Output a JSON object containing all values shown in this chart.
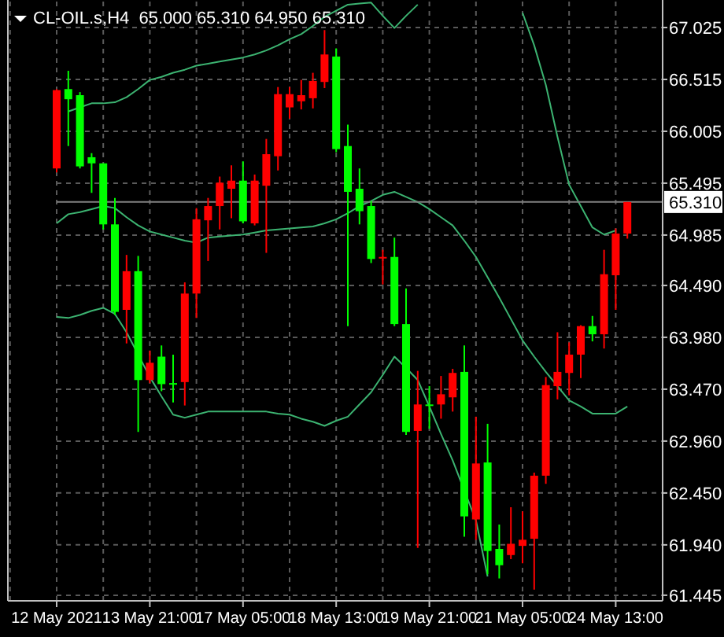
{
  "chart_data": {
    "type": "candlestick",
    "title": "CL-OIL.s,H4  65.000 65.310 64.950 65.310",
    "categories": [
      "12 May 2021",
      null,
      null,
      null,
      null,
      null,
      null,
      null,
      "13 May 21:00",
      null,
      null,
      null,
      null,
      null,
      null,
      null,
      "17 May 05:00",
      null,
      null,
      null,
      null,
      null,
      null,
      null,
      "18 May 13:00",
      null,
      null,
      null,
      null,
      null,
      null,
      null,
      "19 May 21:00",
      null,
      null,
      null,
      null,
      null,
      null,
      null,
      "21 May 05:00",
      null,
      null,
      null,
      null,
      null,
      null,
      null,
      "24 May 13:00",
      null
    ],
    "ohlc": [
      [
        65.64,
        66.42,
        65.6,
        66.41
      ],
      [
        66.42,
        66.6,
        65.86,
        66.32
      ],
      [
        66.36,
        66.39,
        65.64,
        65.66
      ],
      [
        65.75,
        65.79,
        65.4,
        65.69
      ],
      [
        65.69,
        65.69,
        65.04,
        65.09
      ],
      [
        65.09,
        65.35,
        64.2,
        64.23
      ],
      [
        64.25,
        64.79,
        63.92,
        64.63
      ],
      [
        64.63,
        64.78,
        63.05,
        63.56
      ],
      [
        63.56,
        63.85,
        63.53,
        63.73
      ],
      [
        63.79,
        63.9,
        63.45,
        63.52
      ],
      [
        63.53,
        63.81,
        63.34,
        63.52
      ],
      [
        63.54,
        64.52,
        63.31,
        64.41
      ],
      [
        64.41,
        65.25,
        64.17,
        65.14
      ],
      [
        65.13,
        65.35,
        64.73,
        65.27
      ],
      [
        65.27,
        65.56,
        65.04,
        65.5
      ],
      [
        65.44,
        65.67,
        65.15,
        65.52
      ],
      [
        65.52,
        65.71,
        65.1,
        65.12
      ],
      [
        65.1,
        65.58,
        65.08,
        65.52
      ],
      [
        65.47,
        65.93,
        64.81,
        65.78
      ],
      [
        65.76,
        66.44,
        65.62,
        66.37
      ],
      [
        66.24,
        66.44,
        66.13,
        66.37
      ],
      [
        66.3,
        66.51,
        66.22,
        66.36
      ],
      [
        66.33,
        66.58,
        66.23,
        66.5
      ],
      [
        66.49,
        67.0,
        66.43,
        66.76
      ],
      [
        66.74,
        66.82,
        65.8,
        65.83
      ],
      [
        65.86,
        66.07,
        64.09,
        65.41
      ],
      [
        65.44,
        65.64,
        65.09,
        65.22
      ],
      [
        65.27,
        65.32,
        64.71,
        64.75
      ],
      [
        64.76,
        64.84,
        64.5,
        64.77
      ],
      [
        64.77,
        64.96,
        64.09,
        64.11
      ],
      [
        64.11,
        64.46,
        63.02,
        63.05
      ],
      [
        63.06,
        63.65,
        61.91,
        63.32
      ],
      [
        63.32,
        63.5,
        63.08,
        63.31
      ],
      [
        63.32,
        63.6,
        63.18,
        63.42
      ],
      [
        63.39,
        63.67,
        63.25,
        63.63
      ],
      [
        63.64,
        63.9,
        62.02,
        62.22
      ],
      [
        62.19,
        63.2,
        61.99,
        62.74
      ],
      [
        62.75,
        63.13,
        61.65,
        61.88
      ],
      [
        61.9,
        62.14,
        61.61,
        61.74
      ],
      [
        61.84,
        62.31,
        61.8,
        61.95
      ],
      [
        61.93,
        62.27,
        61.76,
        61.99
      ],
      [
        62.0,
        62.65,
        61.5,
        62.62
      ],
      [
        62.62,
        63.59,
        62.54,
        63.51
      ],
      [
        63.5,
        64.03,
        63.37,
        63.64
      ],
      [
        63.63,
        63.93,
        63.41,
        63.81
      ],
      [
        63.81,
        64.1,
        63.58,
        64.09
      ],
      [
        64.09,
        64.19,
        63.94,
        64.01
      ],
      [
        64.01,
        64.84,
        63.87,
        64.6
      ],
      [
        64.59,
        65.05,
        64.25,
        65.0
      ],
      [
        65.0,
        65.31,
        64.95,
        65.31
      ]
    ],
    "colors": [
      "#ff0000",
      "#00ff00",
      "#00ff00",
      "#00ff00",
      "#00ff00",
      "#00ff00",
      "#ff0000",
      "#00ff00",
      "#ff0000",
      "#00ff00",
      "#00ff00",
      "#ff0000",
      "#ff0000",
      "#ff0000",
      "#ff0000",
      "#ff0000",
      "#00ff00",
      "#ff0000",
      "#ff0000",
      "#ff0000",
      "#ff0000",
      "#ff0000",
      "#ff0000",
      "#ff0000",
      "#00ff00",
      "#00ff00",
      "#00ff00",
      "#00ff00",
      "#ff0000",
      "#00ff00",
      "#00ff00",
      "#ff0000",
      "#00ff00",
      "#ff0000",
      "#ff0000",
      "#00ff00",
      "#ff0000",
      "#00ff00",
      "#00ff00",
      "#ff0000",
      "#ff0000",
      "#ff0000",
      "#ff0000",
      "#ff0000",
      "#ff0000",
      "#ff0000",
      "#00ff00",
      "#ff0000",
      "#ff0000",
      "#ff0000"
    ],
    "series": [
      {
        "type": "line",
        "color": "#3cb371",
        "values": [
          null,
          66.2,
          66.24,
          66.28,
          66.28,
          66.29,
          66.34,
          66.42,
          66.51,
          66.54,
          66.58,
          66.61,
          66.65,
          66.67,
          66.69,
          66.71,
          66.73,
          66.76,
          66.8,
          66.85,
          66.91,
          66.96,
          67.04,
          67.13,
          67.19,
          67.25,
          67.26,
          67.27,
          67.14,
          67.02,
          67.14,
          67.25,
          null,
          null,
          null,
          null,
          null,
          null,
          null,
          null,
          67.17,
          66.85,
          66.46,
          65.95,
          65.48,
          65.27,
          65.06,
          64.99,
          65.03,
          null
        ]
      },
      {
        "type": "line",
        "color": "#3cb371",
        "values": [
          65.1,
          65.19,
          65.21,
          65.24,
          65.27,
          65.25,
          65.16,
          65.08,
          65.02,
          64.99,
          64.96,
          64.93,
          64.91,
          64.96,
          64.97,
          64.98,
          64.99,
          65.01,
          65.03,
          65.04,
          65.05,
          65.06,
          65.07,
          65.1,
          65.14,
          65.2,
          65.27,
          65.32,
          65.38,
          65.41,
          65.36,
          65.31,
          65.24,
          65.16,
          65.08,
          64.93,
          64.77,
          64.57,
          64.37,
          64.16,
          63.95,
          63.79,
          63.64,
          63.5,
          63.36,
          63.3,
          63.23,
          63.23,
          63.23,
          63.3
        ]
      },
      {
        "type": "line",
        "color": "#3cb371",
        "values": [
          64.18,
          64.17,
          64.2,
          64.24,
          64.27,
          64.21,
          64.03,
          null,
          63.59,
          63.4,
          63.22,
          63.19,
          63.22,
          63.25,
          63.25,
          63.25,
          63.25,
          63.25,
          63.25,
          63.23,
          63.22,
          63.18,
          63.15,
          63.11,
          63.16,
          63.2,
          63.32,
          63.44,
          63.61,
          63.79,
          63.68,
          63.56,
          63.3,
          63.03,
          62.77,
          null,
          62.18,
          61.63,
          null,
          null,
          null,
          null,
          null,
          null,
          null,
          null,
          null,
          null,
          null,
          null
        ]
      }
    ],
    "ylim": [
      61.39,
      67.28
    ],
    "yticks": [
      67.025,
      66.515,
      66.005,
      65.495,
      64.985,
      {
        "value": 64.49,
        "label": "64.490"
      },
      {
        "value": 63.98,
        "label": "63.980"
      },
      {
        "value": 63.47,
        "label": "63.470"
      },
      {
        "value": 62.96,
        "label": "62.960"
      },
      {
        "value": 62.45,
        "label": "62.450"
      },
      {
        "value": 61.94,
        "label": "61.940"
      },
      61.445
    ],
    "ref_lines": [
      {
        "axis": "y",
        "value": 65.31,
        "label": "65.310",
        "color": "#808080"
      }
    ],
    "grid": true
  }
}
